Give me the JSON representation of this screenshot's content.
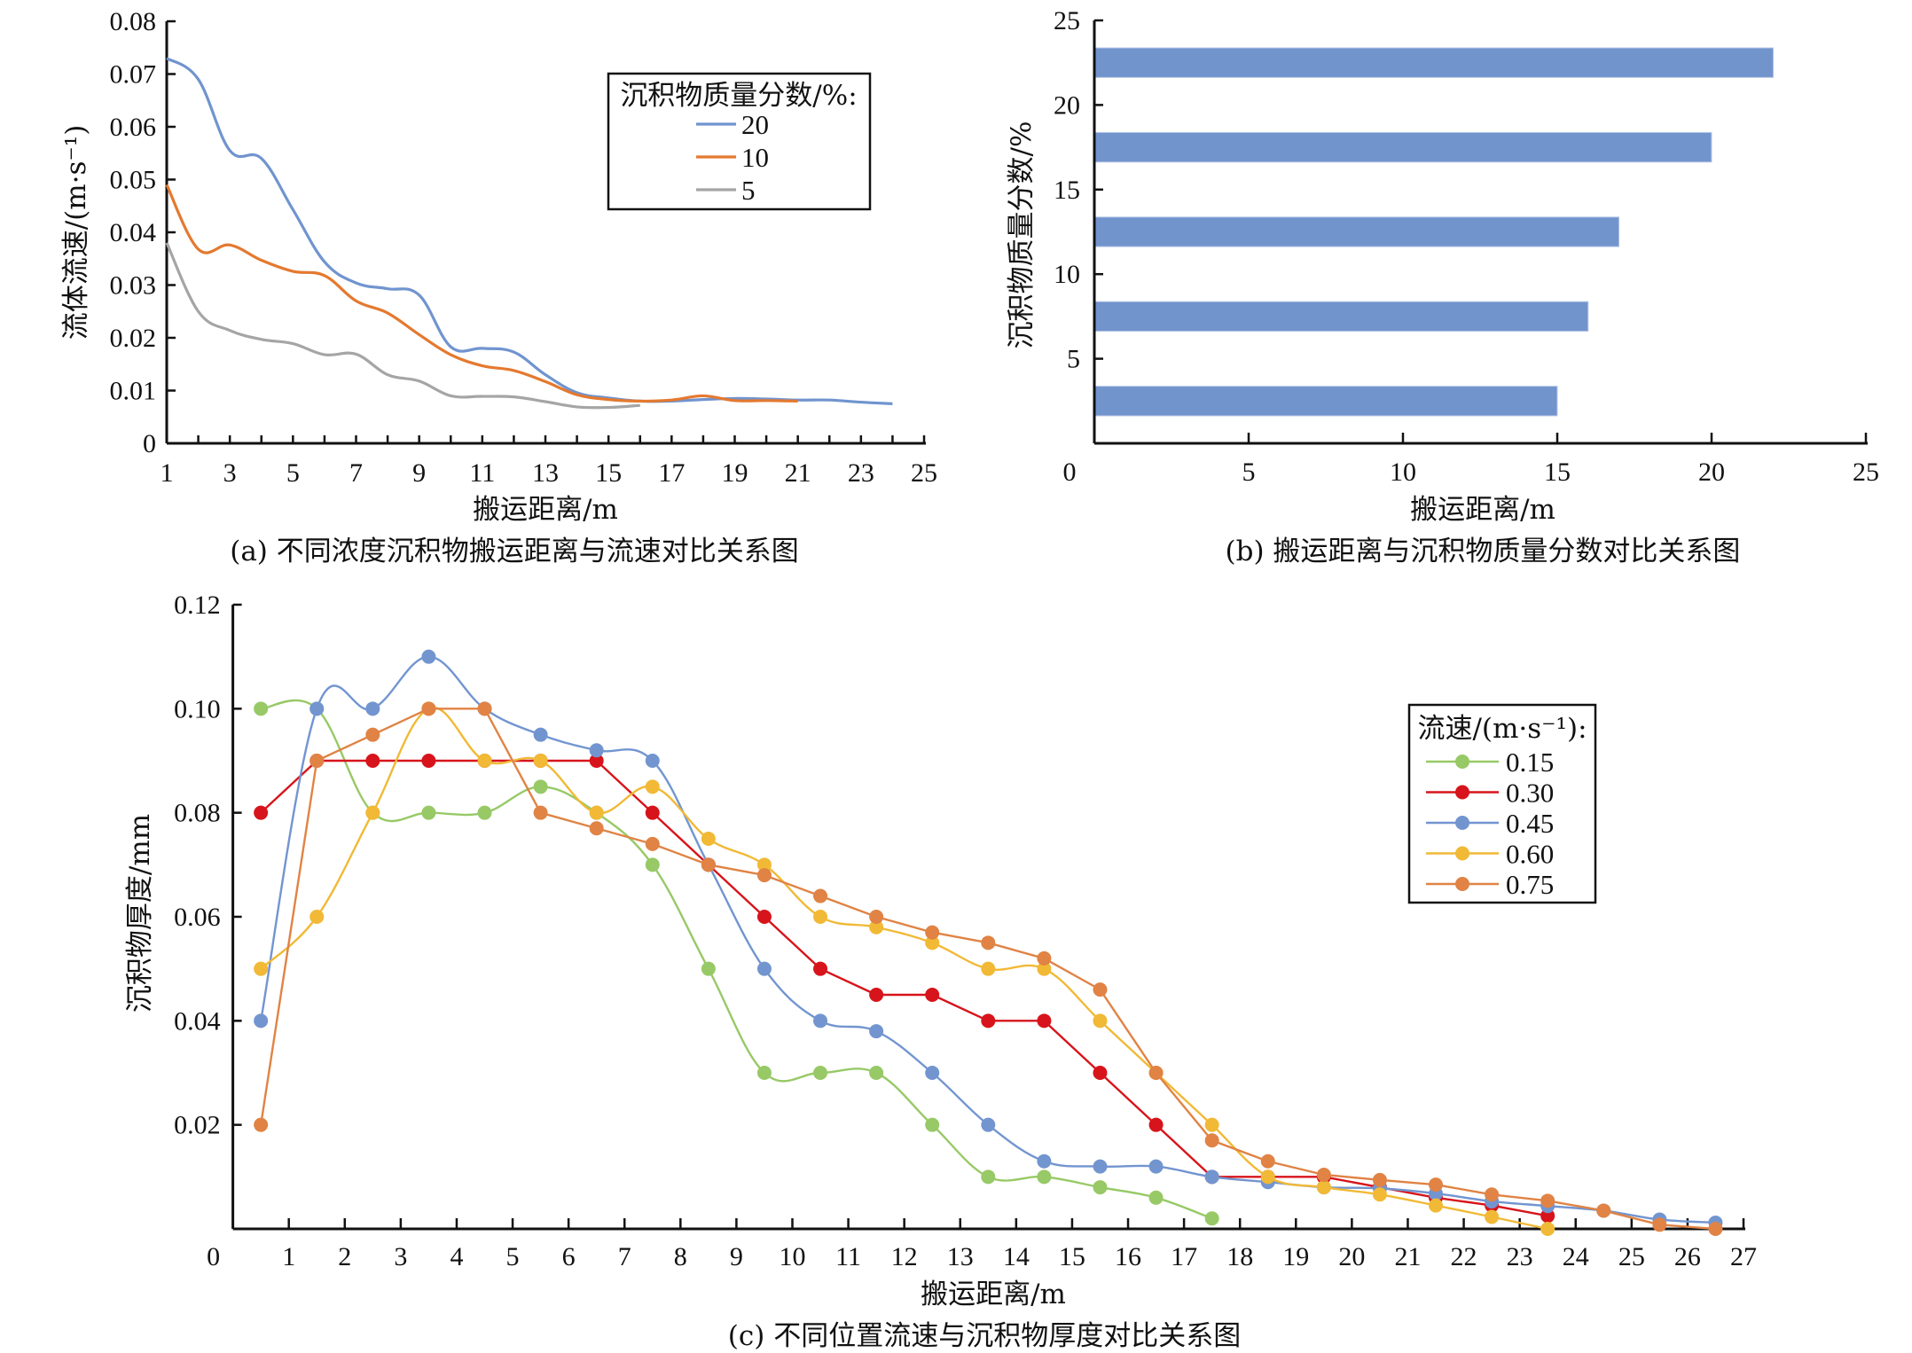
{
  "chart_data": [
    {
      "id": "a",
      "type": "line",
      "caption": "(a) 不同浓度沉积物搬运距离与流速对比关系图",
      "title": "",
      "xlabel": "搬运距离/m",
      "ylabel": "流体流速/(m·s⁻¹)",
      "xlim": [
        1,
        25
      ],
      "ylim": [
        0,
        0.08
      ],
      "xticks": [
        1,
        3,
        5,
        7,
        9,
        11,
        13,
        15,
        17,
        19,
        21,
        23,
        25
      ],
      "minor_xticks_every": 1,
      "yticks": [
        "0",
        "0.01",
        "0.02",
        "0.03",
        "0.04",
        "0.05",
        "0.06",
        "0.07",
        "0.08"
      ],
      "smooth": true,
      "grid": false,
      "legend": {
        "title": "沉积物质量分数/%:",
        "position": "top-right"
      },
      "series": [
        {
          "name": "20",
          "color": "#7094cf",
          "x": [
            1,
            2,
            3,
            4,
            5,
            6,
            7,
            8,
            9,
            10,
            11,
            12,
            13,
            14,
            15,
            16,
            17,
            18,
            19,
            20,
            21,
            22,
            23,
            24
          ],
          "y": [
            0.073,
            0.069,
            0.0555,
            0.054,
            0.0443,
            0.0344,
            0.0304,
            0.0293,
            0.0281,
            0.0183,
            0.018,
            0.0173,
            0.013,
            0.0096,
            0.0086,
            0.008,
            0.008,
            0.0083,
            0.0085,
            0.0084,
            0.0082,
            0.0082,
            0.0078,
            0.0075
          ]
        },
        {
          "name": "10",
          "color": "#e4792f",
          "x": [
            1,
            2,
            3,
            4,
            5,
            6,
            7,
            8,
            9,
            10,
            11,
            12,
            13,
            14,
            15,
            16,
            17,
            18,
            19,
            20,
            21
          ],
          "y": [
            0.049,
            0.0368,
            0.0376,
            0.0347,
            0.0326,
            0.0318,
            0.027,
            0.0247,
            0.0206,
            0.0168,
            0.0147,
            0.0138,
            0.0117,
            0.0092,
            0.0083,
            0.008,
            0.0082,
            0.009,
            0.0081,
            0.0081,
            0.008
          ]
        },
        {
          "name": "5",
          "color": "#a5a5a5",
          "x": [
            1,
            2,
            3,
            4,
            5,
            6,
            7,
            8,
            9,
            10,
            11,
            12,
            13,
            14,
            15,
            16
          ],
          "y": [
            0.038,
            0.025,
            0.0214,
            0.0197,
            0.0189,
            0.0168,
            0.0169,
            0.013,
            0.0118,
            0.009,
            0.0089,
            0.0088,
            0.0079,
            0.0069,
            0.0068,
            0.0072
          ]
        }
      ]
    },
    {
      "id": "b",
      "type": "bar",
      "orientation": "horizontal",
      "caption": "(b) 搬运距离与沉积物质量分数对比关系图",
      "title": "",
      "xlabel": "搬运距离/m",
      "ylabel": "沉积物质量分数/%",
      "xlim": [
        0,
        25
      ],
      "ylim": [
        0,
        25
      ],
      "xticks": [
        "0",
        "5",
        "10",
        "15",
        "20",
        "25"
      ],
      "yticks": [
        "5",
        "10",
        "15",
        "20",
        "25"
      ],
      "bar_color": "#7294cd",
      "grid": false,
      "categories": [
        2.5,
        7.5,
        12.5,
        17.5,
        22.5
      ],
      "values": [
        15,
        16,
        17,
        20,
        22
      ]
    },
    {
      "id": "c",
      "type": "line",
      "markers": true,
      "caption": "(c) 不同位置流速与沉积物厚度对比关系图",
      "title": "",
      "xlabel": "搬运距离/m",
      "ylabel": "沉积物厚度/mm",
      "xlim": [
        0,
        27
      ],
      "ylim": [
        0,
        0.12
      ],
      "xticks": [
        "0",
        "1",
        "2",
        "3",
        "4",
        "5",
        "6",
        "7",
        "8",
        "9",
        "10",
        "11",
        "12",
        "13",
        "14",
        "15",
        "16",
        "17",
        "18",
        "19",
        "20",
        "21",
        "22",
        "23",
        "24",
        "25",
        "26",
        "27"
      ],
      "yticks": [
        "0.02",
        "0.04",
        "0.06",
        "0.08",
        "0.10",
        "0.12"
      ],
      "grid": false,
      "legend": {
        "title": "流速/(m·s⁻¹):",
        "position": "right"
      },
      "series": [
        {
          "name": "0.15",
          "color": "#97c966",
          "smooth": true,
          "x": [
            0.5,
            1.5,
            2.5,
            3.5,
            4.5,
            5.5,
            6.5,
            7.5,
            8.5,
            9.5,
            10.5,
            11.5,
            12.5,
            13.5,
            14.5,
            15.5,
            16.5,
            17.5
          ],
          "y": [
            0.1,
            0.1,
            0.08,
            0.08,
            0.08,
            0.085,
            0.08,
            0.07,
            0.05,
            0.03,
            0.03,
            0.03,
            0.02,
            0.01,
            0.01,
            0.008,
            0.006,
            0.002
          ]
        },
        {
          "name": "0.30",
          "color": "#d7141b",
          "smooth": false,
          "x": [
            0.5,
            1.5,
            2.5,
            3.5,
            4.5,
            5.5,
            6.5,
            7.5,
            8.5,
            9.5,
            10.5,
            11.5,
            12.5,
            13.5,
            14.5,
            15.5,
            16.5,
            17.5,
            18.5,
            19.5,
            20.5,
            21.5,
            22.5,
            23.5
          ],
          "y": [
            0.08,
            0.09,
            0.09,
            0.09,
            0.09,
            0.09,
            0.09,
            0.08,
            0.07,
            0.06,
            0.05,
            0.045,
            0.045,
            0.04,
            0.04,
            0.03,
            0.02,
            0.01,
            0.01,
            0.01,
            0.008,
            0.006,
            0.0045,
            0.0025
          ]
        },
        {
          "name": "0.45",
          "color": "#7295d0",
          "smooth": true,
          "x": [
            0.5,
            1.5,
            2.5,
            3.5,
            4.5,
            5.5,
            6.5,
            7.5,
            8.5,
            9.5,
            10.5,
            11.5,
            12.5,
            13.5,
            14.5,
            15.5,
            16.5,
            17.5,
            18.5,
            19.5,
            20.5,
            21.5,
            22.5,
            23.5,
            24.5,
            25.5,
            26.5
          ],
          "y": [
            0.04,
            0.1,
            0.1,
            0.11,
            0.1,
            0.095,
            0.092,
            0.09,
            0.07,
            0.05,
            0.04,
            0.038,
            0.03,
            0.02,
            0.013,
            0.012,
            0.012,
            0.01,
            0.009,
            0.008,
            0.0078,
            0.0068,
            0.0053,
            0.0044,
            0.0035,
            0.0018,
            0.0012
          ]
        },
        {
          "name": "0.60",
          "color": "#f1b935",
          "smooth": true,
          "x": [
            0.5,
            1.5,
            2.5,
            3.5,
            4.5,
            5.5,
            6.5,
            7.5,
            8.5,
            9.5,
            10.5,
            11.5,
            12.5,
            13.5,
            14.5,
            15.5,
            16.5,
            17.5,
            18.5,
            19.5,
            20.5,
            21.5,
            22.5,
            23.5
          ],
          "y": [
            0.05,
            0.06,
            0.08,
            0.1,
            0.09,
            0.09,
            0.08,
            0.085,
            0.075,
            0.07,
            0.06,
            0.058,
            0.055,
            0.05,
            0.05,
            0.04,
            0.03,
            0.02,
            0.01,
            0.008,
            0.0066,
            0.0045,
            0.0023,
            0.0
          ]
        },
        {
          "name": "0.75",
          "color": "#e08344",
          "smooth": false,
          "x": [
            0.5,
            1.5,
            2.5,
            3.5,
            4.5,
            5.5,
            6.5,
            7.5,
            8.5,
            9.5,
            10.5,
            11.5,
            12.5,
            13.5,
            14.5,
            15.5,
            16.5,
            17.5,
            18.5,
            19.5,
            20.5,
            21.5,
            22.5,
            23.5,
            24.5,
            25.5,
            26.5
          ],
          "y": [
            0.02,
            0.09,
            0.095,
            0.1,
            0.1,
            0.08,
            0.077,
            0.074,
            0.07,
            0.068,
            0.064,
            0.06,
            0.057,
            0.055,
            0.052,
            0.046,
            0.03,
            0.017,
            0.013,
            0.0104,
            0.0094,
            0.0085,
            0.0066,
            0.0054,
            0.0035,
            0.0008,
            0.0
          ]
        }
      ]
    }
  ]
}
